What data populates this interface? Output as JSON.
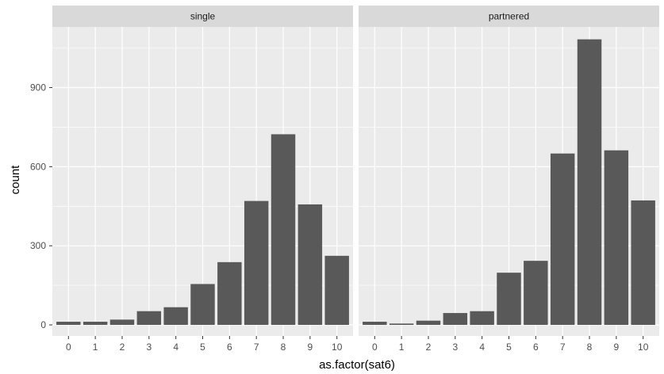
{
  "chart_data": {
    "type": "bar",
    "facet_layout": "columns",
    "xlabel": "as.factor(sat6)",
    "ylabel": "count",
    "categories": [
      "0",
      "1",
      "2",
      "3",
      "4",
      "5",
      "6",
      "7",
      "8",
      "9",
      "10"
    ],
    "ylim": [
      -42,
      1130
    ],
    "y_ticks": [
      0,
      300,
      600,
      900
    ],
    "grid": true,
    "panel_background": "#ebebeb",
    "strip_background": "#d9d9d9",
    "bar_color": "#595959",
    "gridline_color": "#ffffff",
    "panels": [
      {
        "strip": "single",
        "values": [
          12,
          12,
          20,
          52,
          67,
          155,
          238,
          470,
          723,
          457,
          262
        ]
      },
      {
        "strip": "partnered",
        "values": [
          12,
          5,
          16,
          45,
          52,
          198,
          243,
          650,
          1083,
          662,
          472
        ]
      }
    ]
  }
}
